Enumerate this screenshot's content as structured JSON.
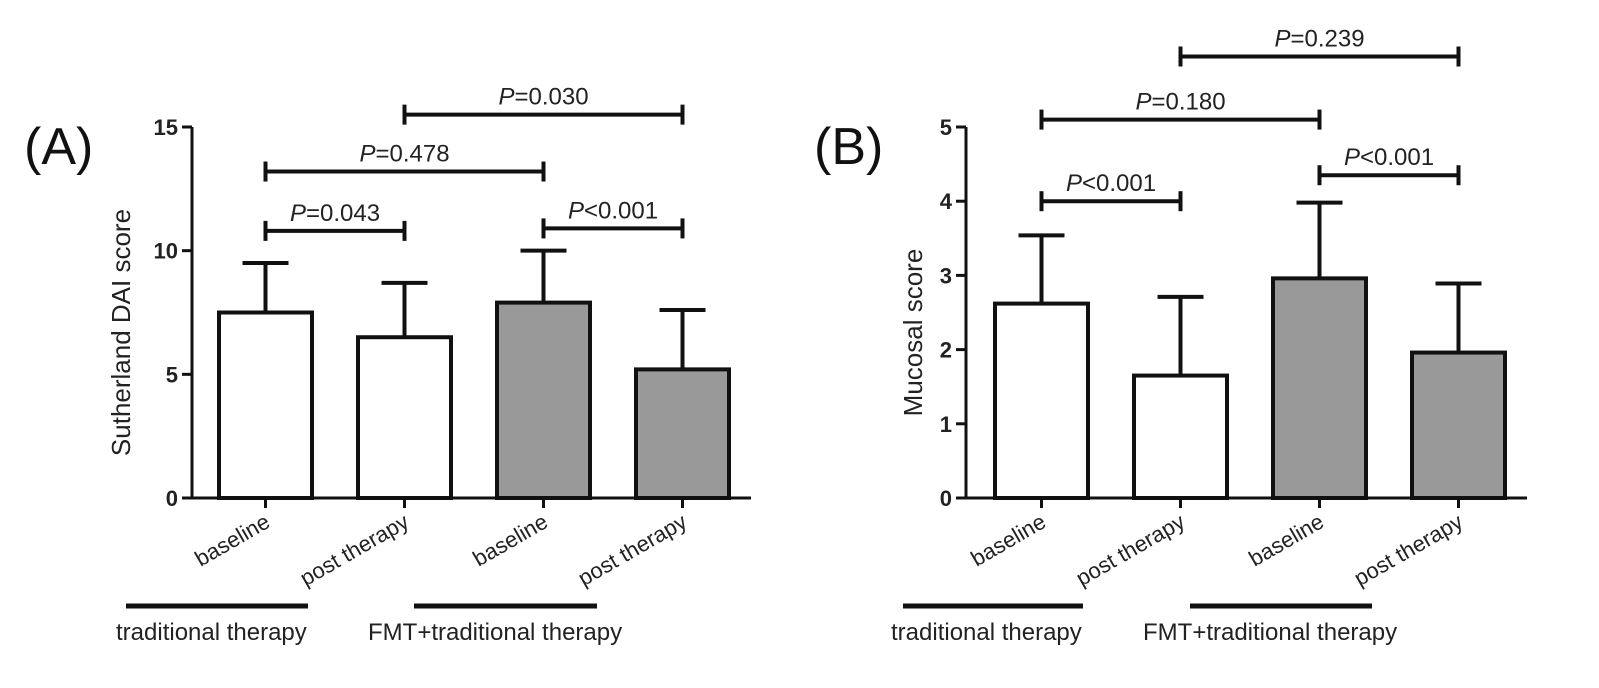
{
  "chart_data": [
    {
      "type": "bar",
      "panel_label": "(A)",
      "ylabel": "Sutherland DAI score",
      "ylim": [
        0,
        15
      ],
      "yticks": [
        0,
        5,
        10,
        15
      ],
      "categories": [
        "baseline",
        "post therapy",
        "baseline",
        "post therapy"
      ],
      "values": [
        7.5,
        6.5,
        7.9,
        5.2
      ],
      "errors": [
        2.0,
        2.2,
        2.1,
        2.4
      ],
      "bar_colors": [
        "#ffffff",
        "#ffffff",
        "#999999",
        "#999999"
      ],
      "groups": [
        {
          "label": "traditional therapy",
          "categories": [
            0,
            1
          ]
        },
        {
          "label": "FMT+traditional therapy",
          "categories": [
            2,
            3
          ]
        }
      ],
      "comparisons": [
        {
          "from": 0,
          "to": 1,
          "y": 10.8,
          "p_symbol": "P",
          "p_text": "=0.043"
        },
        {
          "from": 2,
          "to": 3,
          "y": 10.9,
          "p_symbol": "P",
          "p_text": "<0.001"
        },
        {
          "from": 0,
          "to": 2,
          "y": 13.2,
          "p_symbol": "P",
          "p_text": "=0.478"
        },
        {
          "from": 1,
          "to": 3,
          "y": 15.5,
          "p_symbol": "P",
          "p_text": "=0.030"
        }
      ]
    },
    {
      "type": "bar",
      "panel_label": "(B)",
      "ylabel": "Mucosal score",
      "ylim": [
        0,
        5
      ],
      "yticks": [
        0,
        1,
        2,
        3,
        4,
        5
      ],
      "categories": [
        "baseline",
        "post therapy",
        "baseline",
        "post therapy"
      ],
      "values": [
        2.62,
        1.65,
        2.96,
        1.96
      ],
      "errors": [
        0.92,
        1.06,
        1.02,
        0.93
      ],
      "bar_colors": [
        "#ffffff",
        "#ffffff",
        "#999999",
        "#999999"
      ],
      "groups": [
        {
          "label": "traditional therapy",
          "categories": [
            0,
            1
          ]
        },
        {
          "label": "FMT+traditional therapy",
          "categories": [
            2,
            3
          ]
        }
      ],
      "comparisons": [
        {
          "from": 0,
          "to": 1,
          "y": 4.0,
          "p_symbol": "P",
          "p_text": "<0.001"
        },
        {
          "from": 2,
          "to": 3,
          "y": 4.35,
          "p_symbol": "P",
          "p_text": "<0.001"
        },
        {
          "from": 0,
          "to": 2,
          "y": 5.1,
          "p_symbol": "P",
          "p_text": "=0.180"
        },
        {
          "from": 1,
          "to": 3,
          "y": 5.95,
          "p_symbol": "P",
          "p_text": "=0.239"
        }
      ]
    }
  ]
}
